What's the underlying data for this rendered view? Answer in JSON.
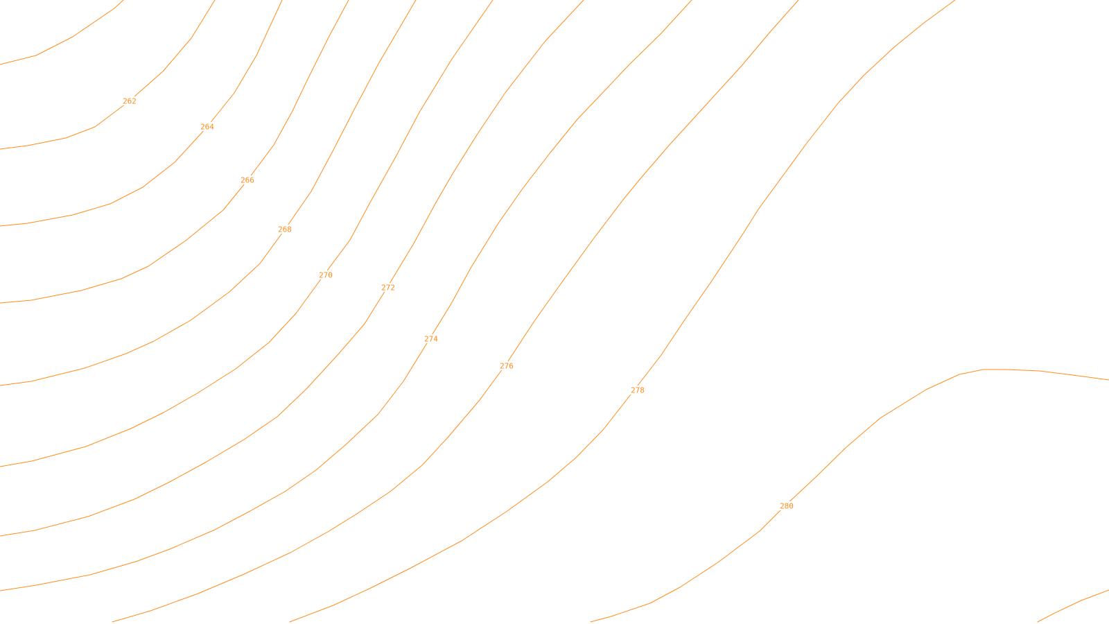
{
  "map": {
    "type": "contour-map",
    "line_color": "#ff8c1a",
    "label_color": "#ff8c1a",
    "background_color": "#ffffff",
    "contours": [
      {
        "id": "c260",
        "label": ""
      },
      {
        "id": "c262",
        "label": "262"
      },
      {
        "id": "c264",
        "label": "264"
      },
      {
        "id": "c266",
        "label": "266"
      },
      {
        "id": "c268",
        "label": "268"
      },
      {
        "id": "c270",
        "label": "270"
      },
      {
        "id": "c272",
        "label": "272"
      },
      {
        "id": "c274",
        "label": "274"
      },
      {
        "id": "c276",
        "label": "276"
      },
      {
        "id": "c278",
        "label": "278"
      },
      {
        "id": "c280",
        "label": "280"
      },
      {
        "id": "c280b",
        "label": ""
      }
    ]
  }
}
